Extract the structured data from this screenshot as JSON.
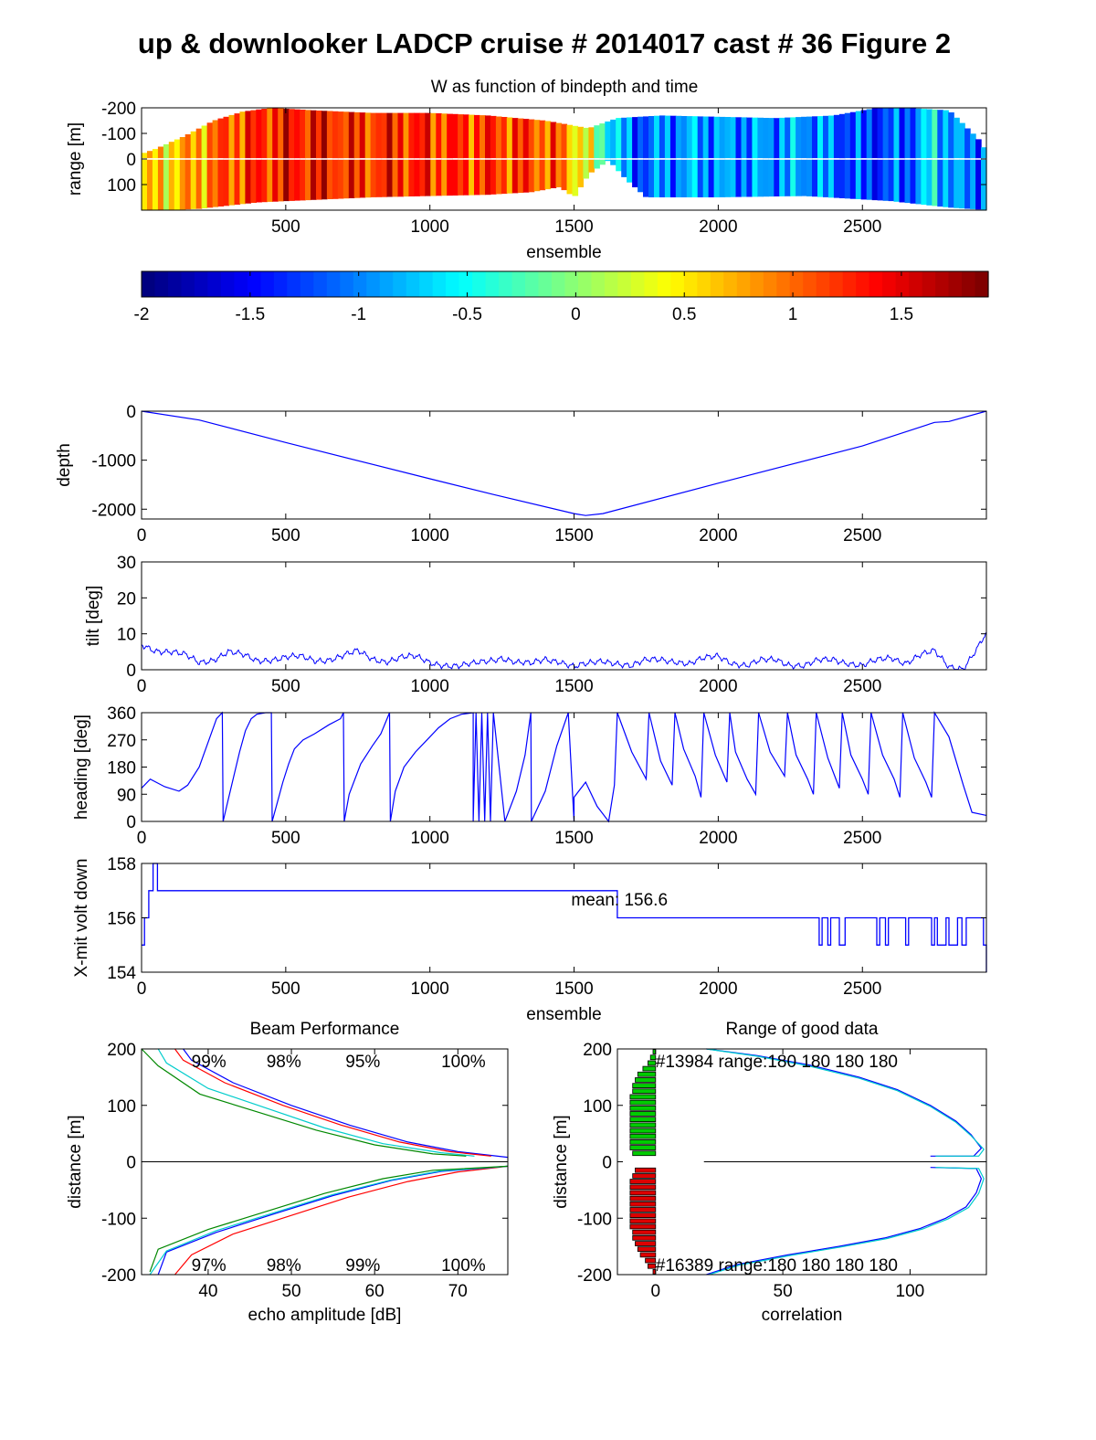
{
  "title": "up & downlooker LADCP cruise # 2014017 cast # 36 Figure 2",
  "colors": {
    "axis": "#000000",
    "line": "#0000ff",
    "green": "#00cc00",
    "red": "#dd0000",
    "cyan": "#00cccc"
  },
  "chart_data": [
    {
      "id": "w-heatmap",
      "type": "heatmap",
      "title": "W as function of bindepth and time",
      "xlabel": "ensemble",
      "ylabel": "range [m]",
      "xlim": [
        0,
        2930
      ],
      "ylim": [
        -200,
        200
      ],
      "x_ticks": [
        500,
        1000,
        1500,
        2000,
        2500
      ],
      "y_ticks": [
        -200,
        -100,
        0,
        100
      ],
      "y_tick_labels": [
        "-200",
        "-100",
        "0",
        "100"
      ],
      "colorbar": {
        "clim": [
          -2,
          1.9
        ],
        "ticks": [
          -2,
          -1.5,
          -1,
          -0.5,
          0,
          0.5,
          1,
          1.5
        ],
        "tick_labels": [
          "-2",
          "-1.5",
          "-1",
          "-0.5",
          "0",
          "0.5",
          "1",
          "1.5"
        ],
        "colormap": "jet"
      },
      "w_profile": {
        "x": [
          0,
          150,
          300,
          450,
          600,
          750,
          900,
          1050,
          1200,
          1350,
          1450,
          1550,
          1620,
          1700,
          1900,
          2100,
          2300,
          2500,
          2650,
          2750,
          2850,
          2930
        ],
        "w": [
          0.5,
          0.7,
          1.1,
          1.3,
          1.4,
          1.2,
          1.3,
          1.2,
          1.2,
          1.15,
          1.0,
          0.3,
          -0.5,
          -1.2,
          -0.9,
          -1.0,
          -0.9,
          -1.3,
          -1.2,
          -0.6,
          -1.1,
          -1.0
        ]
      },
      "upper_top": {
        "x": [
          0,
          50,
          150,
          250,
          350,
          450,
          600,
          800,
          1000,
          1200,
          1400,
          1550,
          1650,
          1800,
          2000,
          2200,
          2400,
          2550,
          2650,
          2800,
          2900,
          2930
        ],
        "range": [
          -20,
          -40,
          -90,
          -150,
          -185,
          -200,
          -190,
          -180,
          -180,
          -170,
          -150,
          -120,
          -160,
          -170,
          -165,
          -160,
          -170,
          -200,
          -200,
          -190,
          -80,
          -30
        ]
      },
      "lower_bottom": {
        "x": [
          0,
          100,
          200,
          400,
          600,
          800,
          1000,
          1200,
          1350,
          1450,
          1500,
          1550,
          1620,
          1680,
          1750,
          2000,
          2300,
          2600,
          2800,
          2930
        ],
        "range": [
          200,
          200,
          195,
          170,
          160,
          150,
          145,
          140,
          130,
          110,
          150,
          60,
          5,
          80,
          150,
          150,
          145,
          165,
          190,
          200
        ]
      }
    },
    {
      "id": "depth",
      "type": "line",
      "ylabel": "depth",
      "xlim": [
        0,
        2930
      ],
      "ylim": [
        -2200,
        0
      ],
      "x_ticks": [
        0,
        500,
        1000,
        1500,
        2000,
        2500
      ],
      "y_ticks": [
        0,
        -1000,
        -2000
      ],
      "x": [
        0,
        200,
        500,
        1000,
        1220,
        1500,
        1540,
        1600,
        2000,
        2500,
        2750,
        2800,
        2930
      ],
      "y": [
        0,
        -180,
        -640,
        -1380,
        -1700,
        -2090,
        -2130,
        -2090,
        -1470,
        -710,
        -230,
        -210,
        0
      ]
    },
    {
      "id": "tilt",
      "type": "line",
      "ylabel": "tilt [deg]",
      "xlim": [
        0,
        2930
      ],
      "ylim": [
        0,
        30
      ],
      "x_ticks": [
        0,
        500,
        1000,
        1500,
        2000,
        2500
      ],
      "y_ticks": [
        0,
        10,
        20,
        30
      ],
      "x": [
        0,
        50,
        100,
        150,
        200,
        250,
        300,
        350,
        400,
        450,
        500,
        550,
        600,
        650,
        700,
        750,
        800,
        850,
        900,
        950,
        1000,
        1050,
        1100,
        1150,
        1200,
        1250,
        1300,
        1350,
        1400,
        1450,
        1500,
        1550,
        1600,
        1650,
        1700,
        1750,
        1800,
        1850,
        1900,
        1950,
        2000,
        2050,
        2100,
        2150,
        2200,
        2250,
        2300,
        2350,
        2400,
        2450,
        2500,
        2550,
        2600,
        2650,
        2700,
        2750,
        2800,
        2850,
        2900,
        2930
      ],
      "y": [
        7,
        5.5,
        5,
        4,
        2,
        3,
        5,
        4,
        2.5,
        3,
        3.5,
        3.5,
        2.5,
        3,
        4,
        5,
        3,
        2.5,
        3.5,
        3.5,
        2,
        1.5,
        1,
        1.5,
        2.5,
        3.5,
        2,
        1.5,
        3,
        2.5,
        0.8,
        1.5,
        2.5,
        2,
        1,
        2.5,
        3,
        2.5,
        1.5,
        3,
        4,
        2,
        1,
        2.5,
        3,
        1.5,
        1,
        2.5,
        3,
        2,
        1,
        2.5,
        3.5,
        2,
        4,
        5,
        1,
        0.5,
        6,
        10
      ]
    },
    {
      "id": "heading",
      "type": "line",
      "ylabel": "heading [deg]",
      "xlim": [
        0,
        2930
      ],
      "ylim": [
        0,
        360
      ],
      "x_ticks": [
        0,
        500,
        1000,
        1500,
        2000,
        2500
      ],
      "y_ticks": [
        0,
        90,
        180,
        270,
        360
      ],
      "x": [
        0,
        30,
        80,
        130,
        160,
        200,
        230,
        260,
        280,
        283,
        300,
        320,
        340,
        360,
        380,
        400,
        430,
        450,
        453,
        470,
        490,
        510,
        530,
        560,
        600,
        650,
        690,
        700,
        703,
        720,
        760,
        800,
        830,
        860,
        863,
        880,
        910,
        950,
        990,
        1030,
        1070,
        1110,
        1150,
        1150,
        1160,
        1170,
        1180,
        1190,
        1200,
        1210,
        1220,
        1260,
        1300,
        1330,
        1350,
        1352,
        1400,
        1440,
        1480,
        1500,
        1500,
        1540,
        1580,
        1620,
        1640,
        1650,
        1700,
        1750,
        1760,
        1800,
        1840,
        1850,
        1880,
        1920,
        1940,
        1950,
        1990,
        2030,
        2040,
        2060,
        2100,
        2130,
        2140,
        2180,
        2230,
        2240,
        2270,
        2310,
        2330,
        2340,
        2380,
        2420,
        2430,
        2460,
        2500,
        2520,
        2530,
        2570,
        2610,
        2630,
        2640,
        2680,
        2720,
        2740,
        2750,
        2800,
        2850,
        2880,
        2930
      ],
      "y": [
        110,
        140,
        115,
        100,
        120,
        180,
        260,
        340,
        360,
        0,
        70,
        150,
        230,
        300,
        340,
        355,
        360,
        360,
        0,
        60,
        130,
        190,
        240,
        270,
        290,
        320,
        340,
        360,
        0,
        90,
        190,
        250,
        290,
        360,
        0,
        100,
        180,
        230,
        270,
        310,
        340,
        355,
        360,
        0,
        360,
        0,
        360,
        0,
        360,
        0,
        360,
        0,
        100,
        220,
        360,
        0,
        100,
        250,
        360,
        0,
        80,
        130,
        50,
        0,
        120,
        360,
        230,
        140,
        360,
        200,
        120,
        360,
        240,
        150,
        80,
        360,
        220,
        130,
        360,
        230,
        140,
        90,
        360,
        230,
        150,
        360,
        220,
        140,
        90,
        360,
        210,
        110,
        360,
        220,
        140,
        90,
        360,
        220,
        140,
        80,
        360,
        210,
        130,
        80,
        360,
        280,
        120,
        30,
        20
      ]
    },
    {
      "id": "volt",
      "type": "line",
      "ylabel": "X-mit volt down",
      "xlabel": "ensemble",
      "xlim": [
        0,
        2930
      ],
      "ylim": [
        154,
        158
      ],
      "x_ticks": [
        0,
        500,
        1000,
        1500,
        2000,
        2500
      ],
      "y_ticks": [
        154,
        156,
        158
      ],
      "annotation": "mean: 156.6",
      "x": [
        0,
        10,
        10,
        25,
        25,
        40,
        40,
        55,
        55,
        1650,
        1650,
        2350,
        2350,
        2360,
        2360,
        2380,
        2380,
        2390,
        2390,
        2420,
        2420,
        2440,
        2440,
        2550,
        2550,
        2560,
        2560,
        2580,
        2580,
        2590,
        2590,
        2650,
        2650,
        2660,
        2660,
        2740,
        2740,
        2750,
        2750,
        2760,
        2760,
        2790,
        2790,
        2800,
        2800,
        2830,
        2830,
        2845,
        2845,
        2860,
        2860,
        2920,
        2920,
        2930,
        2930
      ],
      "y": [
        155,
        155,
        156,
        156,
        157,
        157,
        158,
        158,
        157,
        157,
        156,
        156,
        155,
        155,
        156,
        156,
        155,
        155,
        156,
        156,
        155,
        155,
        156,
        156,
        155,
        155,
        156,
        156,
        155,
        155,
        156,
        156,
        155,
        155,
        156,
        156,
        155,
        155,
        156,
        156,
        155,
        155,
        156,
        156,
        155,
        155,
        156,
        156,
        155,
        155,
        156,
        156,
        155,
        155,
        154
      ]
    },
    {
      "id": "beam",
      "type": "line",
      "title": "Beam Performance",
      "xlabel": "echo amplitude [dB]",
      "ylabel": "distance [m]",
      "xlim": [
        32,
        76
      ],
      "ylim": [
        -200,
        200
      ],
      "x_ticks": [
        40,
        50,
        60,
        70
      ],
      "y_ticks": [
        -200,
        -100,
        0,
        100,
        200
      ],
      "top_labels": [
        "99%",
        "98%",
        "95%",
        "100%"
      ],
      "bottom_labels": [
        "97%",
        "98%",
        "99%",
        "100%"
      ],
      "label_x": [
        38,
        47,
        56.5,
        68
      ],
      "series": [
        {
          "color": "#0000ff",
          "x": [
            37,
            38,
            43,
            50,
            57,
            64,
            70,
            76
          ],
          "y": [
            200,
            180,
            140,
            100,
            65,
            35,
            18,
            8
          ]
        },
        {
          "color": "#ff0000",
          "x": [
            36,
            37,
            42,
            49,
            56,
            63,
            69,
            74
          ],
          "y": [
            200,
            180,
            140,
            100,
            65,
            35,
            18,
            10
          ]
        },
        {
          "color": "#00cccc",
          "x": [
            34,
            35,
            40,
            47,
            54,
            61,
            68,
            72
          ],
          "y": [
            200,
            175,
            130,
            95,
            60,
            32,
            16,
            10
          ]
        },
        {
          "color": "#008800",
          "x": [
            32,
            34,
            39,
            46,
            53,
            60,
            67,
            71
          ],
          "y": [
            200,
            170,
            120,
            88,
            56,
            30,
            14,
            10
          ]
        },
        {
          "color": "#ff0000",
          "x": [
            36,
            38,
            43,
            50,
            57,
            64,
            70,
            76
          ],
          "y": [
            -200,
            -165,
            -128,
            -95,
            -62,
            -35,
            -18,
            -8
          ]
        },
        {
          "color": "#0000ff",
          "x": [
            34,
            35,
            41,
            48,
            55,
            62,
            68,
            76
          ],
          "y": [
            -200,
            -160,
            -125,
            -92,
            -60,
            -33,
            -17,
            -8
          ]
        },
        {
          "color": "#00cccc",
          "x": [
            33,
            35,
            41,
            48,
            55,
            62,
            68,
            76
          ],
          "y": [
            -200,
            -158,
            -122,
            -90,
            -58,
            -32,
            -16,
            -8
          ]
        },
        {
          "color": "#008800",
          "x": [
            33,
            34,
            40,
            47,
            54,
            61,
            67,
            76
          ],
          "y": [
            -195,
            -155,
            -120,
            -88,
            -56,
            -30,
            -15,
            -8
          ]
        }
      ]
    },
    {
      "id": "range-good",
      "type": "bar",
      "title": "Range of good data",
      "xlabel": "correlation",
      "ylabel": "distance [m]",
      "xlim": [
        -15,
        130
      ],
      "ylim": [
        -200,
        200
      ],
      "x_ticks": [
        0,
        50,
        100
      ],
      "y_ticks": [
        -200,
        -100,
        0,
        100,
        200
      ],
      "top_label": "#13984 range:180 180 180 180",
      "bottom_label": "#16389 range:180 180 180 180",
      "up_bars": {
        "distance": [
          195,
          185,
          175,
          165,
          155,
          145,
          135,
          125,
          115,
          105,
          95,
          85,
          75,
          65,
          55,
          45,
          35,
          25,
          15
        ],
        "width": [
          1,
          2,
          3,
          5,
          7,
          8,
          9,
          9,
          10,
          10,
          10,
          10,
          10,
          10,
          10,
          10,
          10,
          10,
          9
        ]
      },
      "down_bars": {
        "distance": [
          -15,
          -25,
          -35,
          -45,
          -55,
          -65,
          -75,
          -85,
          -95,
          -105,
          -115,
          -125,
          -135,
          -145,
          -155,
          -165,
          -175,
          -185,
          -195
        ],
        "width": [
          8,
          9,
          10,
          10,
          10,
          10,
          10,
          10,
          10,
          10,
          10,
          9,
          9,
          8,
          7,
          6,
          4,
          3,
          1
        ]
      },
      "series": [
        {
          "color": "#0000ff",
          "x": [
            20,
            40,
            60,
            80,
            95,
            108,
            118,
            124,
            128,
            125,
            108
          ],
          "y": [
            200,
            188,
            172,
            150,
            128,
            100,
            72,
            48,
            24,
            10,
            10
          ]
        },
        {
          "color": "#00cccc",
          "x": [
            20,
            40,
            60,
            80,
            95,
            108,
            118,
            124,
            129,
            127,
            110
          ],
          "y": [
            200,
            187,
            170,
            148,
            126,
            98,
            70,
            46,
            22,
            10,
            10
          ]
        },
        {
          "color": "#0000ff",
          "x": [
            108,
            126,
            128,
            126,
            122,
            114,
            104,
            90,
            72,
            52,
            32,
            20
          ],
          "y": [
            -10,
            -12,
            -30,
            -55,
            -80,
            -100,
            -118,
            -135,
            -150,
            -165,
            -182,
            -200
          ]
        },
        {
          "color": "#00cccc",
          "x": [
            110,
            127,
            129,
            127,
            123,
            115,
            105,
            91,
            73,
            53,
            33,
            21
          ],
          "y": [
            -10,
            -12,
            -30,
            -56,
            -81,
            -101,
            -119,
            -136,
            -151,
            -166,
            -183,
            -200
          ]
        }
      ],
      "zero_line": [
        19,
        130
      ]
    }
  ]
}
